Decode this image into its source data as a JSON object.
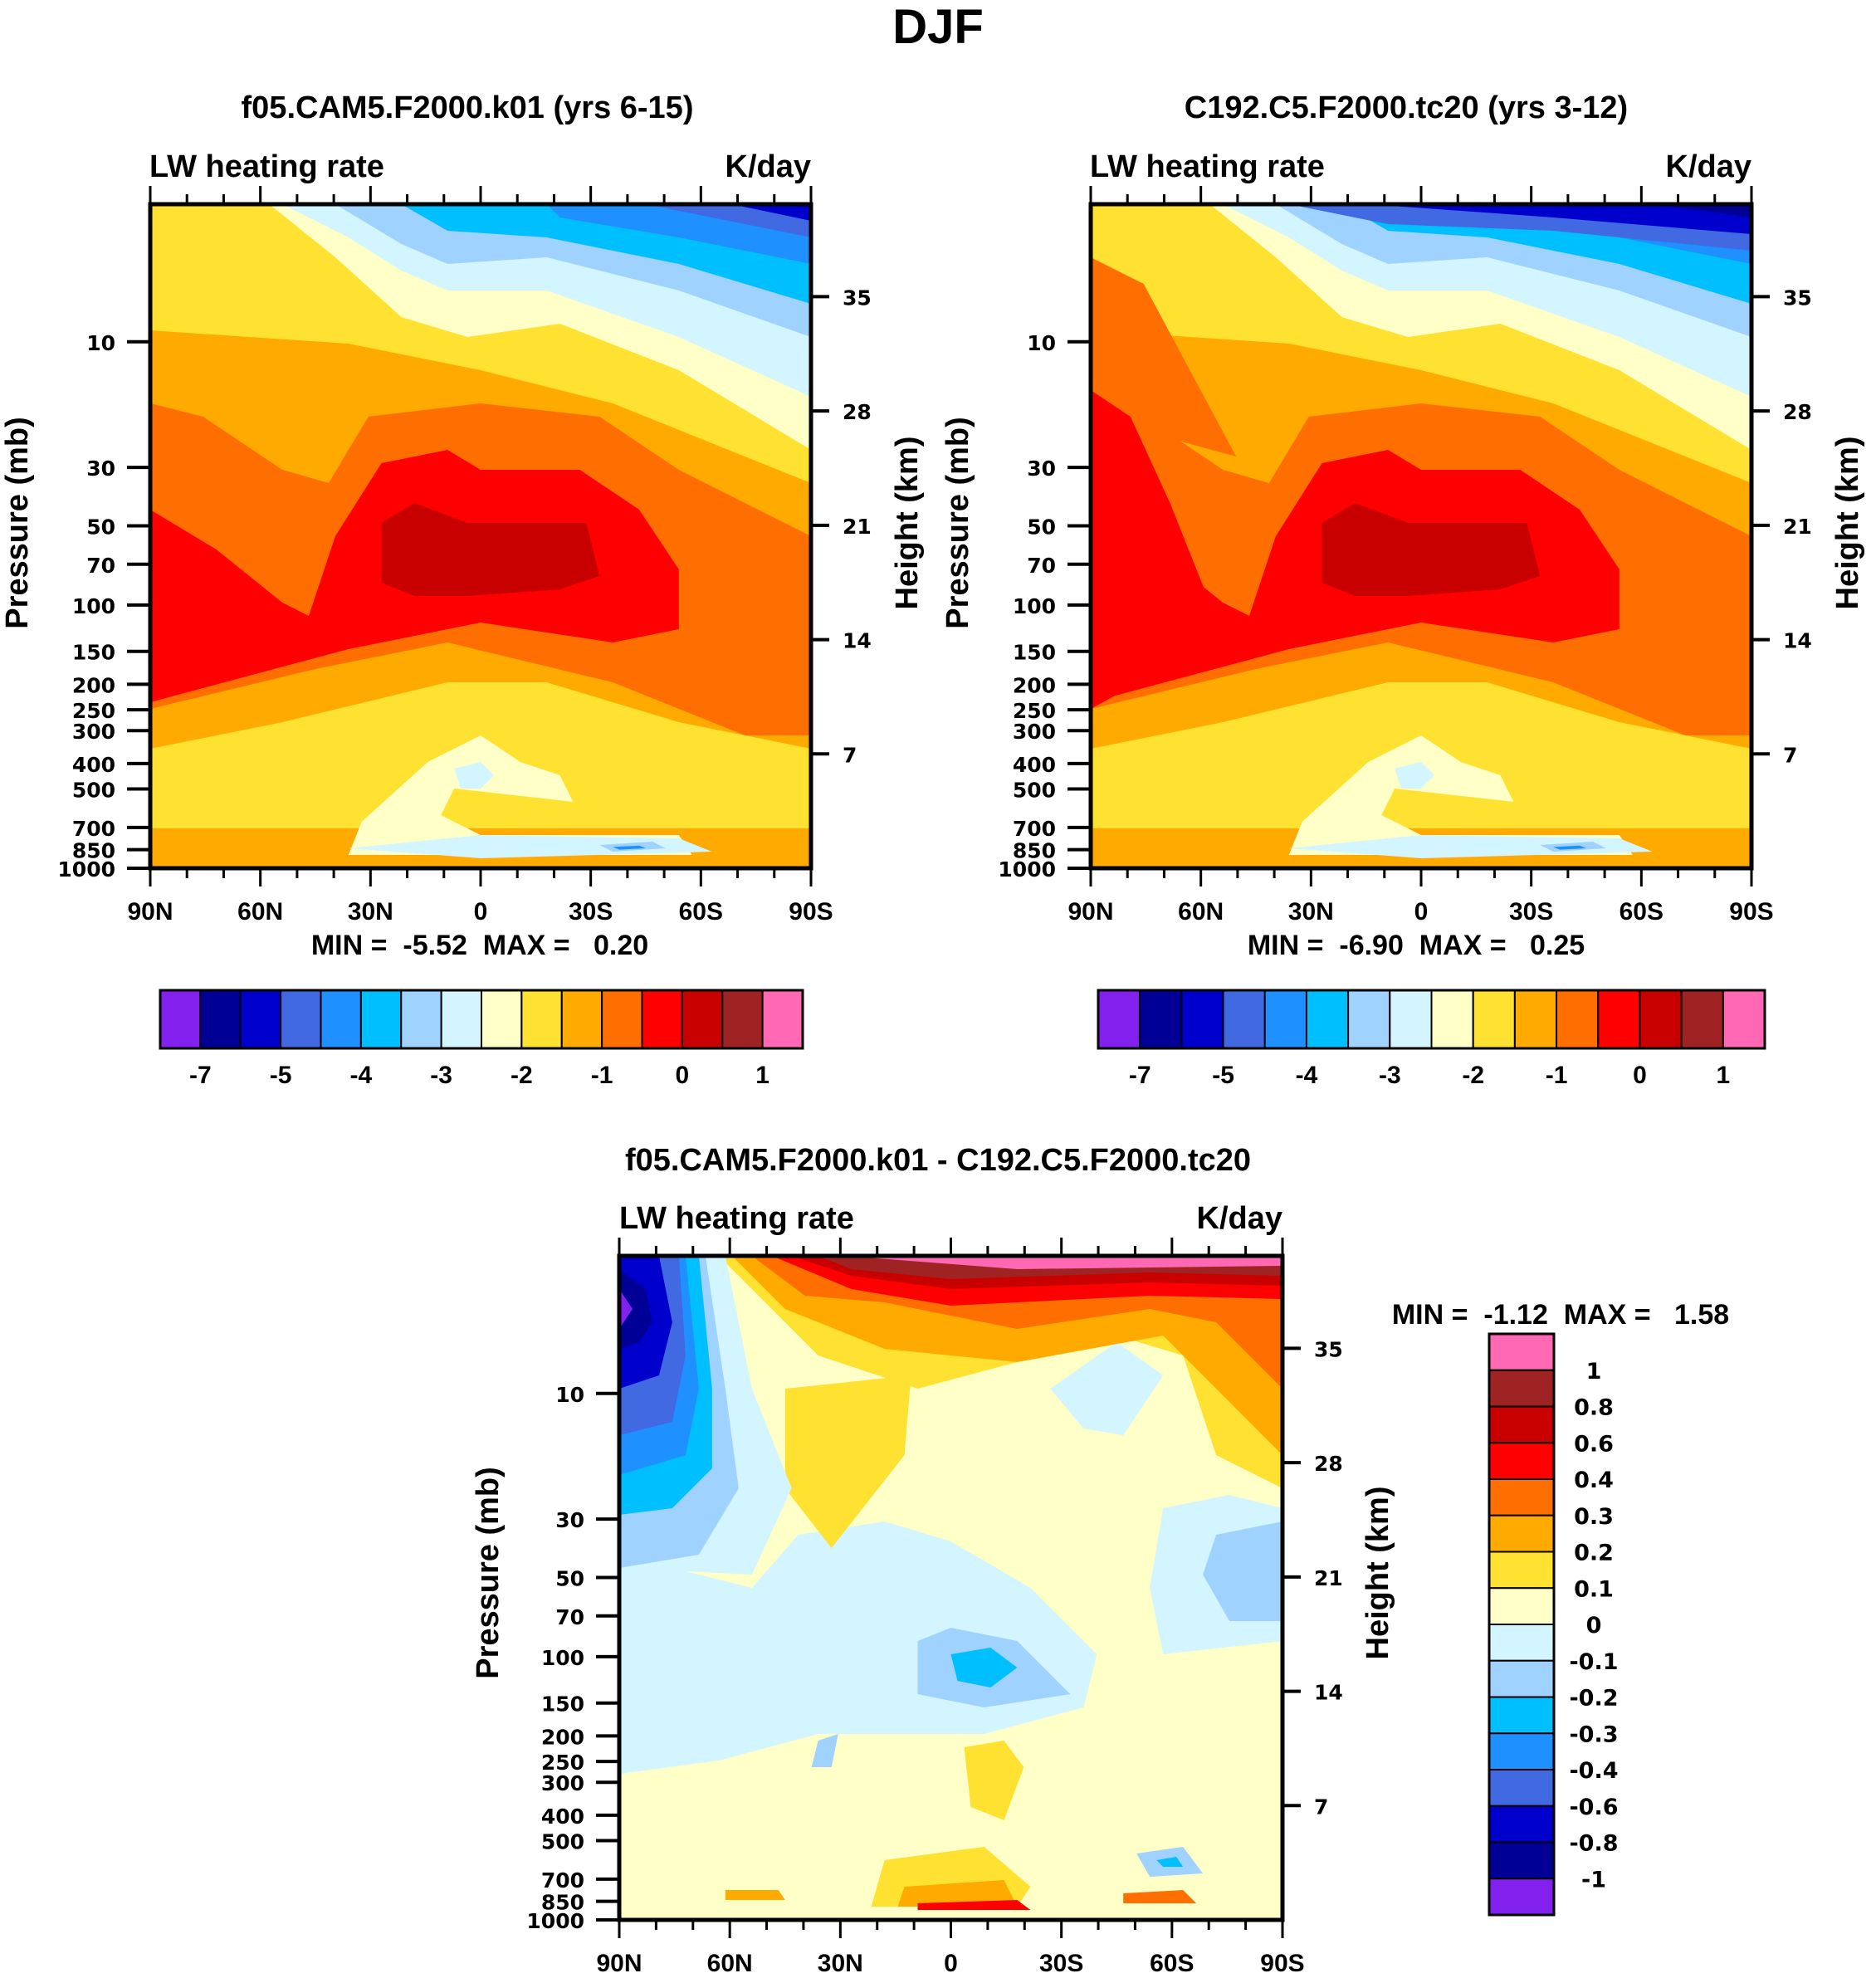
{
  "figure_title": "DJF",
  "chart_data": [
    {
      "type": "heatmap",
      "panel": "model-1",
      "title": "f05.CAM5.F2000.k01 (yrs 6-15)",
      "left_label": "LW heating rate",
      "right_label": "K/day",
      "xlabel": "",
      "ylabel": "Pressure (mb)",
      "y2label": "Height (km)",
      "x_ticks": [
        "90N",
        "60N",
        "30N",
        "0",
        "30S",
        "60S",
        "90S"
      ],
      "y_ticks": [
        "10",
        "30",
        "50",
        "70",
        "100",
        "150",
        "200",
        "250",
        "300",
        "400",
        "500",
        "700",
        "850",
        "1000"
      ],
      "y_tick_values": [
        10,
        30,
        50,
        70,
        100,
        150,
        200,
        250,
        300,
        400,
        500,
        700,
        850,
        1000
      ],
      "y2_ticks": [
        "35",
        "28",
        "21",
        "14",
        "7"
      ],
      "xlim": [
        90,
        -90
      ],
      "ylim_mb": [
        1000,
        3
      ],
      "stats": "MIN =  -5.52  MAX =   0.20",
      "min": -5.52,
      "max": 0.2,
      "colorbar": {
        "orientation": "horizontal",
        "levels": [
          -7,
          -6,
          -5,
          -4.5,
          -4,
          -3.5,
          -3,
          -2.5,
          -2,
          -1.5,
          -1,
          -0.5,
          0,
          0.5,
          1
        ],
        "labels": [
          "-7",
          "-5",
          "-4",
          "-3",
          "-2",
          "-1",
          "0",
          "1"
        ],
        "colors": [
          "#8221ed",
          "#000096",
          "#0000cd",
          "#4169e1",
          "#1e90ff",
          "#00bfff",
          "#a0d2ff",
          "#d2f5ff",
          "#ffffc8",
          "#ffe132",
          "#ffaa00",
          "#ff6e00",
          "#ff0000",
          "#c80000",
          "#a02323",
          "#ff69b4"
        ]
      },
      "description": "Negative (cooling) values largely; least cooling (red) around 70-150mb tropics, strongest cooling (blue) in upper stratosphere toward 90S."
    },
    {
      "type": "heatmap",
      "panel": "model-2",
      "title": "C192.C5.F2000.tc20 (yrs 3-12)",
      "left_label": "LW heating rate",
      "right_label": "K/day",
      "xlabel": "",
      "ylabel": "Pressure (mb)",
      "y2label": "Height (km)",
      "x_ticks": [
        "90N",
        "60N",
        "30N",
        "0",
        "30S",
        "60S",
        "90S"
      ],
      "y_ticks": [
        "10",
        "30",
        "50",
        "70",
        "100",
        "150",
        "200",
        "250",
        "300",
        "400",
        "500",
        "700",
        "850",
        "1000"
      ],
      "y_tick_values": [
        10,
        30,
        50,
        70,
        100,
        150,
        200,
        250,
        300,
        400,
        500,
        700,
        850,
        1000
      ],
      "y2_ticks": [
        "35",
        "28",
        "21",
        "14",
        "7"
      ],
      "xlim": [
        90,
        -90
      ],
      "ylim_mb": [
        1000,
        3
      ],
      "stats": "MIN =  -6.90  MAX =   0.25",
      "min": -6.9,
      "max": 0.25,
      "colorbar": {
        "orientation": "horizontal",
        "levels": [
          -7,
          -6,
          -5,
          -4.5,
          -4,
          -3.5,
          -3,
          -2.5,
          -2,
          -1.5,
          -1,
          -0.5,
          0,
          0.5,
          1
        ],
        "labels": [
          "-7",
          "-5",
          "-4",
          "-3",
          "-2",
          "-1",
          "0",
          "1"
        ],
        "colors": [
          "#8221ed",
          "#000096",
          "#0000cd",
          "#4169e1",
          "#1e90ff",
          "#00bfff",
          "#a0d2ff",
          "#d2f5ff",
          "#ffffc8",
          "#ffe132",
          "#ffaa00",
          "#ff6e00",
          "#ff0000",
          "#c80000",
          "#a02323",
          "#ff69b4"
        ]
      }
    },
    {
      "type": "heatmap",
      "panel": "difference",
      "title": "f05.CAM5.F2000.k01 - C192.C5.F2000.tc20",
      "left_label": "LW heating rate",
      "right_label": "K/day",
      "xlabel": "",
      "ylabel": "Pressure (mb)",
      "y2label": "Height (km)",
      "x_ticks": [
        "90N",
        "60N",
        "30N",
        "0",
        "30S",
        "60S",
        "90S"
      ],
      "y_ticks": [
        "10",
        "30",
        "50",
        "70",
        "100",
        "150",
        "200",
        "250",
        "300",
        "400",
        "500",
        "700",
        "850",
        "1000"
      ],
      "y_tick_values": [
        10,
        30,
        50,
        70,
        100,
        150,
        200,
        250,
        300,
        400,
        500,
        700,
        850,
        1000
      ],
      "y2_ticks": [
        "35",
        "28",
        "21",
        "14",
        "7"
      ],
      "xlim": [
        90,
        -90
      ],
      "ylim_mb": [
        1000,
        3
      ],
      "stats": "MIN =  -1.12  MAX =   1.58",
      "min": -1.12,
      "max": 1.58,
      "colorbar": {
        "orientation": "vertical",
        "levels": [
          -1,
          -0.8,
          -0.6,
          -0.4,
          -0.3,
          -0.2,
          -0.1,
          0,
          0.1,
          0.2,
          0.3,
          0.4,
          0.6,
          0.8,
          1
        ],
        "labels": [
          "1",
          "0.8",
          "0.6",
          "0.4",
          "0.3",
          "0.2",
          "0.1",
          "0",
          "-0.1",
          "-0.2",
          "-0.3",
          "-0.4",
          "-0.6",
          "-0.8",
          "-1"
        ],
        "colors": [
          "#8221ed",
          "#000096",
          "#0000cd",
          "#4169e1",
          "#1e90ff",
          "#00bfff",
          "#a0d2ff",
          "#d2f5ff",
          "#ffffc8",
          "#ffe132",
          "#ffaa00",
          "#ff6e00",
          "#ff0000",
          "#c80000",
          "#a02323",
          "#ff69b4"
        ]
      }
    }
  ]
}
